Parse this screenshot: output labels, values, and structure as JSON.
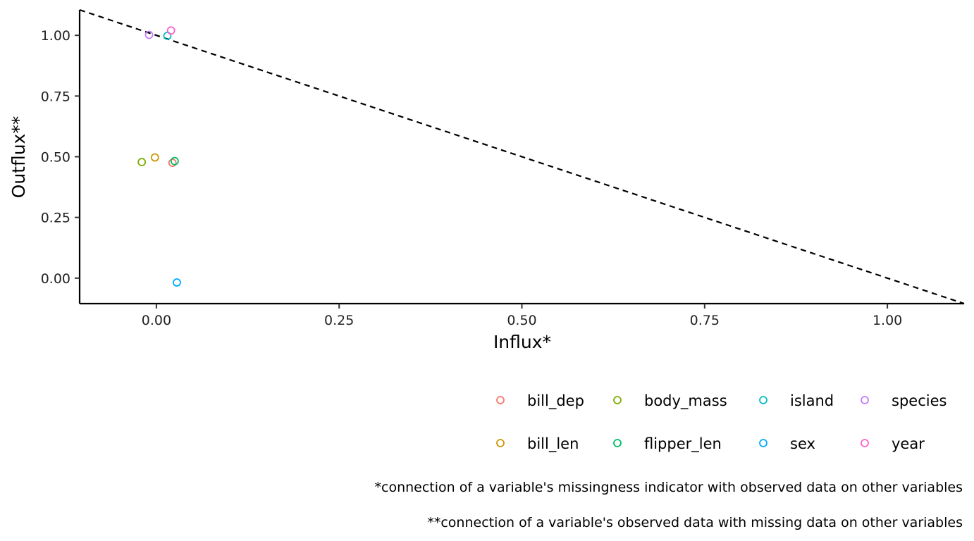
{
  "chart_data": {
    "type": "scatter",
    "xlabel": "Influx*",
    "ylabel": "Outflux**",
    "xlim": [
      -0.105,
      1.105
    ],
    "ylim": [
      -0.105,
      1.105
    ],
    "x_ticks": [
      0.0,
      0.25,
      0.5,
      0.75,
      1.0
    ],
    "x_tick_labels": [
      "0.00",
      "0.25",
      "0.50",
      "0.75",
      "1.00"
    ],
    "y_ticks": [
      0.0,
      0.25,
      0.5,
      0.75,
      1.0
    ],
    "y_tick_labels": [
      "0.00",
      "0.25",
      "0.50",
      "0.75",
      "1.00"
    ],
    "grid": false,
    "marker": "open-circle",
    "reference_line": {
      "style": "dashed",
      "from": [
        -0.105,
        1.105
      ],
      "to": [
        1.105,
        -0.105
      ]
    },
    "series": [
      {
        "name": "bill_dep",
        "color": "#F8766D",
        "x": 0.022,
        "y": 0.475
      },
      {
        "name": "bill_len",
        "color": "#CD9600",
        "x": -0.002,
        "y": 0.497
      },
      {
        "name": "body_mass",
        "color": "#7CAE00",
        "x": -0.02,
        "y": 0.478
      },
      {
        "name": "flipper_len",
        "color": "#00BE67",
        "x": 0.025,
        "y": 0.482
      },
      {
        "name": "island",
        "color": "#00BFC4",
        "x": 0.015,
        "y": 0.998
      },
      {
        "name": "sex",
        "color": "#00A9FF",
        "x": 0.028,
        "y": -0.018
      },
      {
        "name": "species",
        "color": "#C77CFF",
        "x": -0.01,
        "y": 1.002
      },
      {
        "name": "year",
        "color": "#FF61CC",
        "x": 0.02,
        "y": 1.02
      }
    ],
    "legend_position": "bottom-right",
    "legend_columns": [
      [
        "bill_dep",
        "bill_len"
      ],
      [
        "body_mass",
        "flipper_len"
      ],
      [
        "island",
        "sex"
      ],
      [
        "species",
        "year"
      ]
    ],
    "captions": [
      "*connection of a variable's missingness indicator with observed data on other variables",
      "**connection of a variable's observed data with missing data on other variables"
    ]
  }
}
